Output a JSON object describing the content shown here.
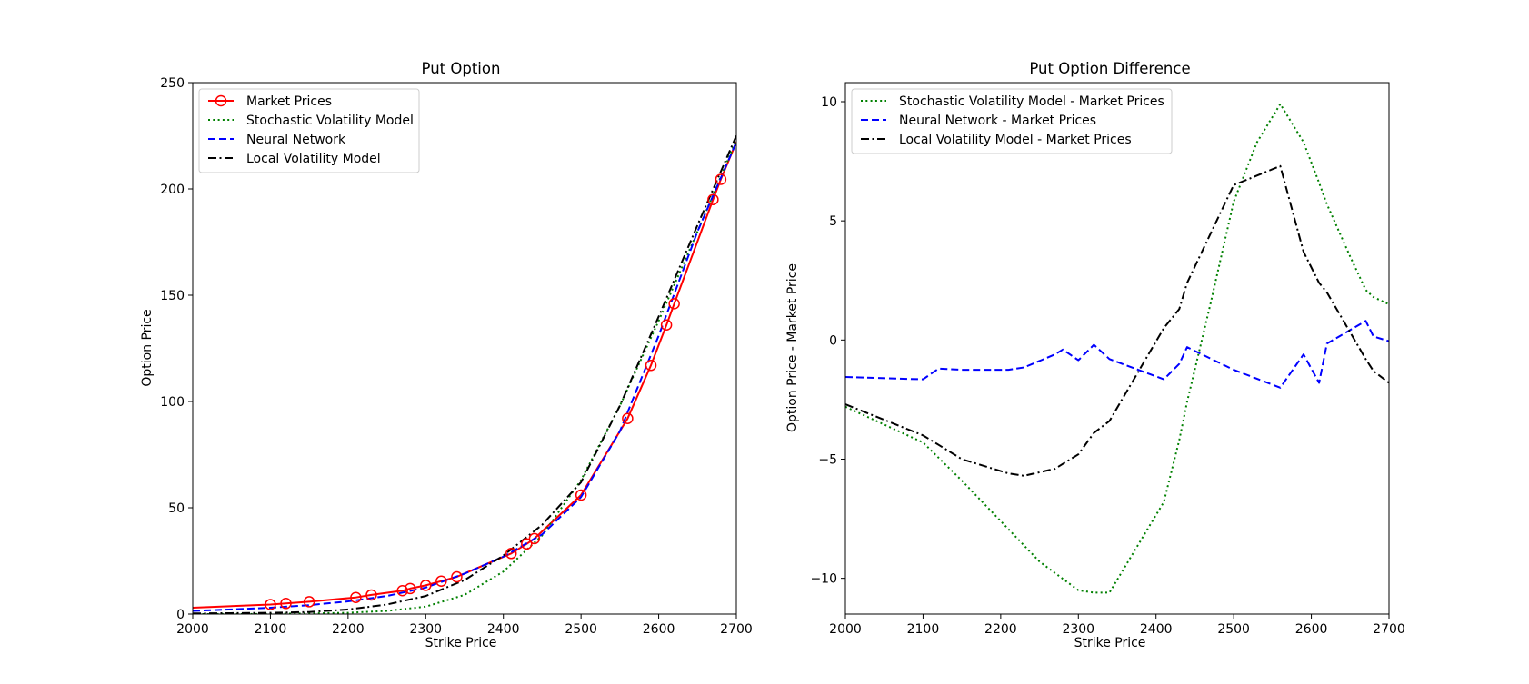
{
  "figure": {
    "background": "#ffffff"
  },
  "chart_data": [
    {
      "type": "line",
      "title": "Put Option",
      "xlabel": "Strike Price",
      "ylabel": "Option Price",
      "xlim": [
        2000,
        2700
      ],
      "ylim": [
        0,
        250
      ],
      "xticks": [
        2000,
        2100,
        2200,
        2300,
        2400,
        2500,
        2600,
        2700
      ],
      "yticks": [
        0,
        50,
        100,
        150,
        200,
        250
      ],
      "legend": "top-left",
      "series": [
        {
          "name": "Market Prices",
          "color": "#ff0000",
          "style": "solid",
          "marker": "circle-open",
          "x": [
            2000,
            2100,
            2120,
            2150,
            2210,
            2230,
            2270,
            2280,
            2300,
            2320,
            2340,
            2410,
            2430,
            2440,
            2500,
            2560,
            2590,
            2610,
            2620,
            2670,
            2680,
            2700
          ],
          "y": [
            3.0,
            4.5,
            5.0,
            5.8,
            7.8,
            9.0,
            11.0,
            12.0,
            13.5,
            15.5,
            17.5,
            28.5,
            33.0,
            35.5,
            56.0,
            92.0,
            117.0,
            136.0,
            146.0,
            195.0,
            204.5,
            222.0
          ],
          "marker_x": [
            2100,
            2120,
            2150,
            2210,
            2230,
            2270,
            2280,
            2300,
            2320,
            2340,
            2410,
            2430,
            2440,
            2500,
            2560,
            2590,
            2610,
            2620,
            2670,
            2680
          ]
        },
        {
          "name": "Stochastic Volatility Model",
          "color": "#008000",
          "style": "dotted",
          "x": [
            2000,
            2100,
            2200,
            2250,
            2300,
            2350,
            2400,
            2450,
            2500,
            2550,
            2600,
            2650,
            2700
          ],
          "y": [
            0.0,
            0.1,
            0.6,
            1.5,
            3.5,
            9.0,
            20.0,
            37.0,
            63.0,
            98.0,
            138.0,
            180.0,
            223.0
          ]
        },
        {
          "name": "Neural Network",
          "color": "#0000ff",
          "style": "dashed",
          "x": [
            2000,
            2050,
            2100,
            2150,
            2200,
            2250,
            2300,
            2350,
            2400,
            2450,
            2500,
            2550,
            2600,
            2650,
            2700
          ],
          "y": [
            1.5,
            2.2,
            3.0,
            4.2,
            6.0,
            8.5,
            12.5,
            19.0,
            27.0,
            37.5,
            55.0,
            86.0,
            131.0,
            180.0,
            222.0
          ]
        },
        {
          "name": "Local Volatility Model",
          "color": "#000000",
          "style": "dashdot",
          "x": [
            2000,
            2100,
            2150,
            2200,
            2250,
            2300,
            2350,
            2400,
            2450,
            2500,
            2550,
            2600,
            2650,
            2700
          ],
          "y": [
            0.3,
            0.6,
            1.0,
            2.2,
            4.5,
            8.5,
            16.0,
            27.5,
            42.0,
            62.0,
            98.0,
            140.0,
            183.0,
            225.0
          ]
        }
      ]
    },
    {
      "type": "line",
      "title": "Put Option Difference",
      "xlabel": "Strike Price",
      "ylabel": "Option Price - Market Price",
      "xlim": [
        2000,
        2700
      ],
      "ylim": [
        -11.5,
        10.8
      ],
      "xticks": [
        2000,
        2100,
        2200,
        2300,
        2400,
        2500,
        2600,
        2700
      ],
      "yticks": [
        -10,
        -5,
        0,
        5,
        10
      ],
      "ytick_labels": [
        "−10",
        "−5",
        "0",
        "5",
        "10"
      ],
      "legend": "top-left",
      "series": [
        {
          "name": "Stochastic Volatility Model - Market Prices",
          "color": "#008000",
          "style": "dotted",
          "x": [
            2000,
            2100,
            2150,
            2200,
            2250,
            2300,
            2320,
            2340,
            2410,
            2430,
            2440,
            2470,
            2500,
            2530,
            2560,
            2590,
            2610,
            2620,
            2650,
            2670,
            2680,
            2700
          ],
          "y": [
            -2.8,
            -4.3,
            -5.9,
            -7.6,
            -9.3,
            -10.5,
            -10.6,
            -10.6,
            -6.8,
            -4.2,
            -2.6,
            1.5,
            5.8,
            8.3,
            9.9,
            8.3,
            6.6,
            5.7,
            3.5,
            2.1,
            1.8,
            1.5
          ]
        },
        {
          "name": "Neural Network - Market Prices",
          "color": "#0000ff",
          "style": "dashed",
          "x": [
            2000,
            2100,
            2120,
            2150,
            2210,
            2230,
            2270,
            2280,
            2300,
            2320,
            2340,
            2410,
            2430,
            2440,
            2500,
            2560,
            2590,
            2610,
            2620,
            2670,
            2680,
            2700
          ],
          "y": [
            -1.55,
            -1.65,
            -1.2,
            -1.25,
            -1.25,
            -1.15,
            -0.6,
            -0.4,
            -0.85,
            -0.2,
            -0.8,
            -1.65,
            -1.0,
            -0.3,
            -1.25,
            -2.0,
            -0.6,
            -1.8,
            -0.15,
            0.8,
            0.15,
            -0.05
          ]
        },
        {
          "name": "Local Volatility Model - Market Prices",
          "color": "#000000",
          "style": "dashdot",
          "x": [
            2000,
            2100,
            2120,
            2150,
            2210,
            2230,
            2270,
            2280,
            2300,
            2320,
            2340,
            2410,
            2430,
            2440,
            2500,
            2560,
            2590,
            2610,
            2620,
            2670,
            2680,
            2700
          ],
          "y": [
            -2.7,
            -4.0,
            -4.4,
            -5.0,
            -5.6,
            -5.7,
            -5.4,
            -5.2,
            -4.8,
            -3.9,
            -3.4,
            0.5,
            1.3,
            2.4,
            6.5,
            7.3,
            3.7,
            2.4,
            2.0,
            -0.8,
            -1.3,
            -1.8
          ]
        }
      ]
    }
  ]
}
